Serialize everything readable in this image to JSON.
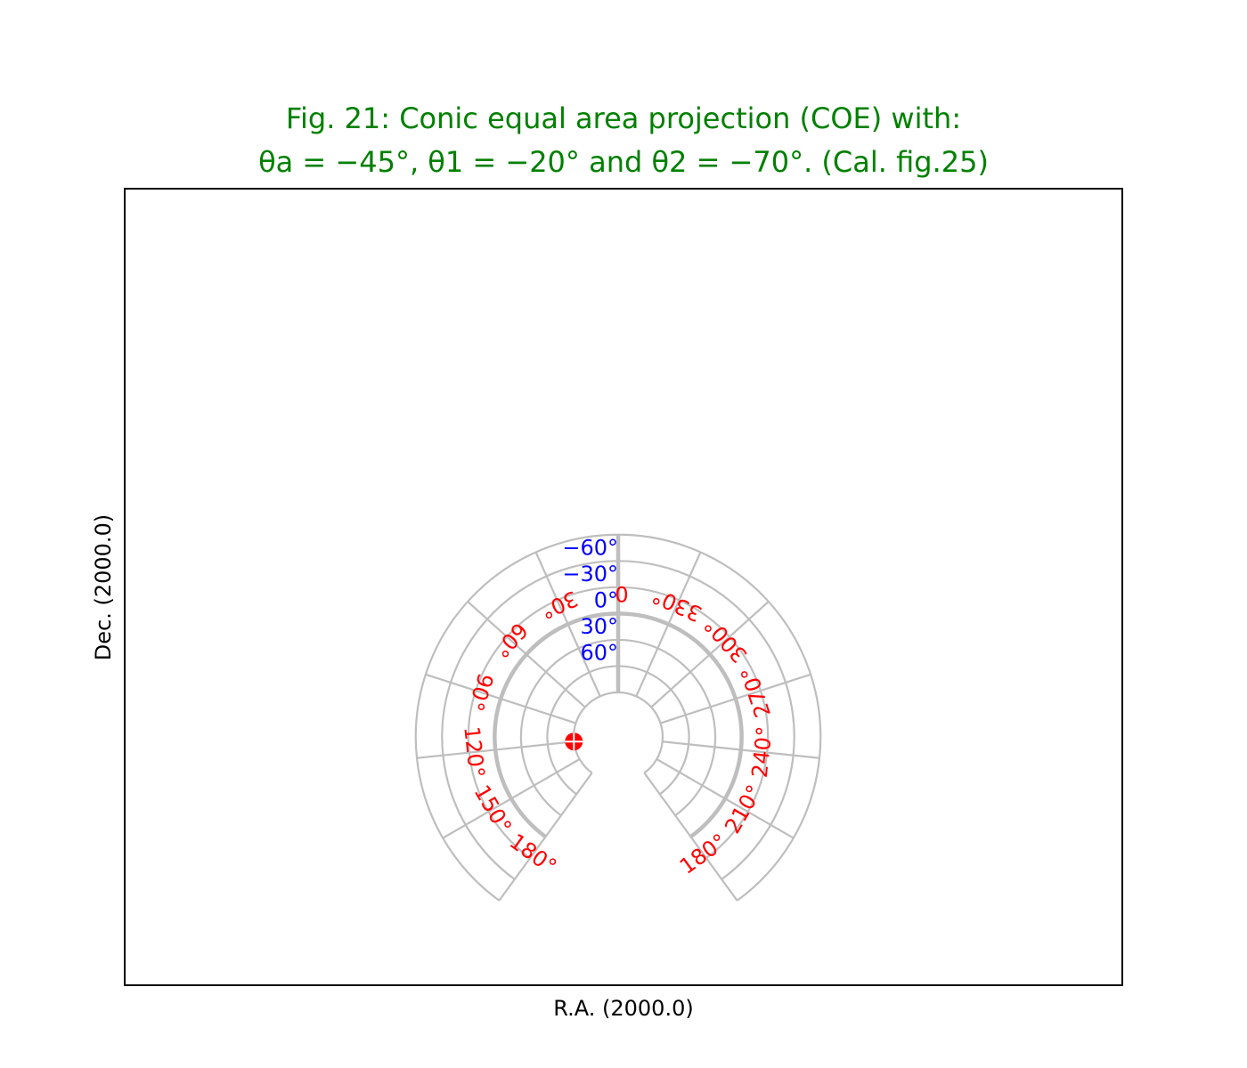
{
  "figure": {
    "title_line1": "Fig. 21: Conic equal area projection (COE) with:",
    "title_line2": "θa = −45°, θ1 = −20° and θ2 = −70°. (Cal. fig.25)",
    "title_color": "#008000"
  },
  "chart_data": {
    "type": "conic-graticule",
    "projection": "COE",
    "xlabel": "R.A. (2000.0)",
    "ylabel": "Dec. (2000.0)",
    "parameters": {
      "theta_a": -45,
      "theta_1": -20,
      "theta_2": -70
    },
    "longitude_lines": [
      180,
      150,
      120,
      90,
      60,
      30,
      0,
      330,
      300,
      270,
      240,
      210,
      180
    ],
    "latitude_lines": [
      -90,
      -60,
      -30,
      0,
      30,
      60,
      90
    ],
    "highlighted_latitude": 0,
    "highlighted_longitude": 0,
    "longitude_labels": [
      "0",
      "30°",
      "60°",
      "90°",
      "120°",
      "150°",
      "180°",
      "330°",
      "300°",
      "270°",
      "240°",
      "210°",
      "180°"
    ],
    "latitude_labels": [
      "60°",
      "30°",
      "0°",
      "−30°",
      "−60°"
    ],
    "marker": {
      "lon": 120,
      "lat": 90,
      "color": "#ff0000"
    },
    "colors": {
      "grid": "#bebebe",
      "longitude_labels": "#ff0000",
      "latitude_labels": "#0000ff"
    }
  }
}
